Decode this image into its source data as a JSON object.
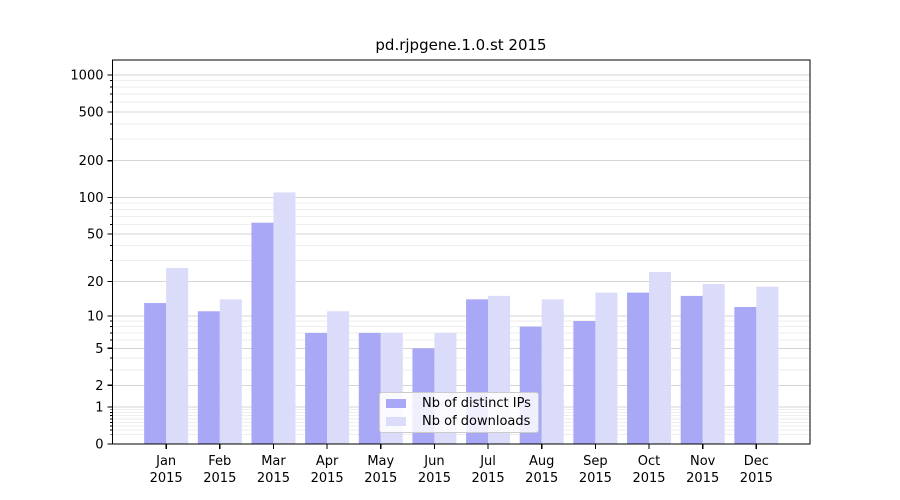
{
  "chart_data": {
    "type": "bar",
    "title": "pd.rjpgene.1.0.st 2015",
    "months": [
      "Jan",
      "Feb",
      "Mar",
      "Apr",
      "May",
      "Jun",
      "Jul",
      "Aug",
      "Sep",
      "Oct",
      "Nov",
      "Dec"
    ],
    "year": "2015",
    "series": [
      {
        "name": "Nb of distinct IPs",
        "color": "#a8a8f6",
        "values": [
          13,
          11,
          62,
          7,
          7,
          5,
          14,
          8,
          9,
          16,
          15,
          12
        ]
      },
      {
        "name": "Nb of downloads",
        "color": "#dbdbfa",
        "values": [
          26,
          14,
          110,
          11,
          7,
          7,
          15,
          14,
          16,
          24,
          19,
          18
        ]
      }
    ],
    "y_axis": {
      "scale": "log10(v+1)",
      "tick_labels": [
        0,
        1,
        2,
        5,
        10,
        20,
        50,
        100,
        200,
        500,
        1000
      ],
      "minor_gridlines": [
        0.2,
        0.3,
        0.4,
        0.5,
        0.6,
        0.7,
        0.8,
        0.9,
        3,
        4,
        6,
        7,
        8,
        9,
        30,
        40,
        60,
        70,
        80,
        90,
        300,
        400,
        600,
        700,
        800,
        900
      ]
    },
    "legend_position": "lower-center",
    "grid": "both-horizontal",
    "colors": {
      "major_grid": "#d5d5d5",
      "minor_grid": "#eeeeee",
      "axis": "#000000",
      "background": "#ffffff"
    }
  }
}
